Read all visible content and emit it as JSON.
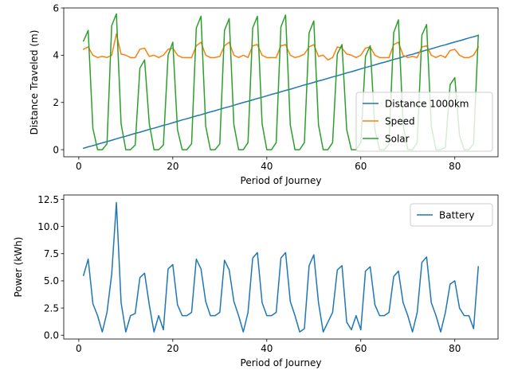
{
  "chart_data": [
    {
      "type": "line",
      "xlabel": "Period of Journey",
      "ylabel": "Distance Traveled (m)",
      "xlim": [
        -3.2,
        89.2
      ],
      "ylim": [
        -0.3,
        6.0
      ],
      "xticks": [
        0,
        20,
        40,
        60,
        80
      ],
      "yticks": [
        0,
        2,
        4,
        6
      ],
      "grid": false,
      "legend_position": "center-right",
      "x": [
        1,
        2,
        3,
        4,
        5,
        6,
        7,
        8,
        9,
        10,
        11,
        12,
        13,
        14,
        15,
        16,
        17,
        18,
        19,
        20,
        21,
        22,
        23,
        24,
        25,
        26,
        27,
        28,
        29,
        30,
        31,
        32,
        33,
        34,
        35,
        36,
        37,
        38,
        39,
        40,
        41,
        42,
        43,
        44,
        45,
        46,
        47,
        48,
        49,
        50,
        51,
        52,
        53,
        54,
        55,
        56,
        57,
        58,
        59,
        60,
        61,
        62,
        63,
        64,
        65,
        66,
        67,
        68,
        69,
        70,
        71,
        72,
        73,
        74,
        75,
        76,
        77,
        78,
        79,
        80,
        81,
        82,
        83,
        84,
        85
      ],
      "series": [
        {
          "name": "Distance 1000km",
          "color": "#1f77b4",
          "values": [
            0.06,
            0.12,
            0.17,
            0.23,
            0.29,
            0.34,
            0.4,
            0.46,
            0.52,
            0.57,
            0.63,
            0.69,
            0.74,
            0.8,
            0.86,
            0.91,
            0.97,
            1.03,
            1.08,
            1.14,
            1.2,
            1.26,
            1.31,
            1.37,
            1.43,
            1.48,
            1.54,
            1.6,
            1.65,
            1.71,
            1.77,
            1.82,
            1.88,
            1.94,
            2.0,
            2.05,
            2.11,
            2.17,
            2.22,
            2.28,
            2.34,
            2.39,
            2.45,
            2.51,
            2.56,
            2.62,
            2.68,
            2.74,
            2.79,
            2.85,
            2.91,
            2.96,
            3.02,
            3.08,
            3.13,
            3.19,
            3.25,
            3.3,
            3.36,
            3.42,
            3.48,
            3.53,
            3.59,
            3.65,
            3.7,
            3.76,
            3.82,
            3.87,
            3.93,
            3.99,
            4.04,
            4.1,
            4.16,
            4.22,
            4.27,
            4.33,
            4.39,
            4.44,
            4.5,
            4.56,
            4.61,
            4.67,
            4.73,
            4.78,
            4.84
          ]
        },
        {
          "name": "Speed",
          "color": "#ff7f0e",
          "values": [
            4.25,
            4.35,
            4.0,
            3.9,
            3.95,
            3.9,
            4.0,
            4.9,
            4.05,
            4.0,
            3.9,
            3.9,
            4.25,
            4.3,
            3.95,
            4.0,
            3.9,
            4.0,
            4.25,
            4.3,
            4.0,
            3.9,
            3.9,
            3.9,
            4.4,
            4.55,
            4.0,
            3.9,
            3.9,
            3.95,
            4.4,
            4.55,
            4.0,
            3.9,
            4.0,
            3.9,
            4.4,
            4.45,
            4.0,
            3.9,
            3.9,
            3.9,
            4.4,
            4.45,
            4.0,
            3.9,
            3.95,
            4.05,
            4.35,
            4.45,
            3.95,
            4.0,
            3.8,
            3.9,
            4.35,
            4.3,
            4.05,
            4.0,
            3.9,
            4.0,
            4.3,
            4.35,
            4.0,
            3.9,
            3.9,
            3.9,
            4.45,
            4.55,
            4.0,
            3.9,
            3.95,
            3.9,
            4.35,
            4.4,
            4.0,
            3.9,
            4.0,
            3.9,
            4.2,
            4.25,
            4.0,
            3.9,
            3.9,
            4.0,
            4.35
          ]
        },
        {
          "name": "Solar",
          "color": "#2ca02c",
          "values": [
            4.6,
            5.05,
            0.9,
            0.0,
            0.0,
            0.25,
            5.25,
            5.75,
            1.1,
            0.0,
            0.0,
            0.2,
            3.45,
            3.8,
            1.1,
            0.0,
            0.0,
            0.2,
            4.0,
            4.55,
            0.85,
            0.0,
            0.0,
            0.25,
            5.15,
            5.65,
            1.0,
            0.0,
            0.0,
            0.25,
            5.05,
            5.55,
            1.05,
            0.0,
            0.0,
            0.3,
            5.15,
            5.65,
            1.1,
            0.0,
            0.0,
            0.3,
            5.2,
            5.7,
            1.05,
            0.0,
            0.0,
            0.3,
            4.95,
            5.45,
            1.05,
            0.0,
            0.0,
            0.3,
            4.05,
            4.45,
            0.85,
            0.0,
            0.0,
            0.3,
            3.95,
            4.4,
            0.85,
            0.0,
            0.0,
            0.25,
            4.95,
            5.5,
            1.05,
            0.0,
            0.0,
            0.3,
            4.85,
            5.3,
            1.0,
            0.0,
            0.0,
            0.1,
            2.75,
            3.05,
            0.6,
            0.0,
            0.0,
            0.25,
            4.85
          ]
        }
      ]
    },
    {
      "type": "line",
      "xlabel": "Period of Journey",
      "ylabel": "Power (kWh)",
      "xlim": [
        -3.2,
        89.2
      ],
      "ylim": [
        -0.35,
        12.9
      ],
      "xticks": [
        0,
        20,
        40,
        60,
        80
      ],
      "yticks": [
        0.0,
        2.5,
        5.0,
        7.5,
        10.0,
        12.5
      ],
      "ytick_labels": [
        "0.0",
        "2.5",
        "5.0",
        "7.5",
        "10.0",
        "12.5"
      ],
      "grid": false,
      "legend_position": "top-right",
      "x": [
        1,
        2,
        3,
        4,
        5,
        6,
        7,
        8,
        9,
        10,
        11,
        12,
        13,
        14,
        15,
        16,
        17,
        18,
        19,
        20,
        21,
        22,
        23,
        24,
        25,
        26,
        27,
        28,
        29,
        30,
        31,
        32,
        33,
        34,
        35,
        36,
        37,
        38,
        39,
        40,
        41,
        42,
        43,
        44,
        45,
        46,
        47,
        48,
        49,
        50,
        51,
        52,
        53,
        54,
        55,
        56,
        57,
        58,
        59,
        60,
        61,
        62,
        63,
        64,
        65,
        66,
        67,
        68,
        69,
        70,
        71,
        72,
        73,
        74,
        75,
        76,
        77,
        78,
        79,
        80,
        81,
        82,
        83,
        84,
        85
      ],
      "series": [
        {
          "name": "Battery",
          "color": "#1f77b4",
          "values": [
            5.5,
            7.0,
            2.9,
            1.8,
            0.3,
            2.1,
            5.6,
            12.2,
            3.0,
            0.3,
            1.8,
            2.0,
            5.3,
            5.7,
            2.8,
            0.3,
            1.8,
            0.5,
            6.1,
            6.5,
            2.8,
            1.8,
            1.8,
            2.1,
            7.0,
            6.1,
            3.1,
            1.8,
            1.8,
            2.1,
            6.9,
            6.0,
            3.1,
            1.8,
            0.3,
            2.1,
            7.1,
            7.6,
            3.0,
            1.8,
            1.8,
            2.1,
            7.1,
            7.6,
            3.1,
            1.8,
            0.3,
            0.6,
            6.4,
            7.4,
            3.0,
            0.3,
            1.2,
            2.1,
            6.0,
            6.4,
            1.2,
            0.5,
            1.8,
            0.5,
            5.9,
            6.3,
            2.8,
            1.8,
            1.8,
            2.1,
            5.4,
            5.9,
            3.0,
            1.8,
            0.3,
            2.1,
            6.7,
            7.2,
            3.0,
            1.8,
            0.3,
            2.1,
            4.7,
            5.0,
            2.5,
            1.8,
            1.8,
            0.6,
            6.3
          ]
        }
      ]
    }
  ]
}
